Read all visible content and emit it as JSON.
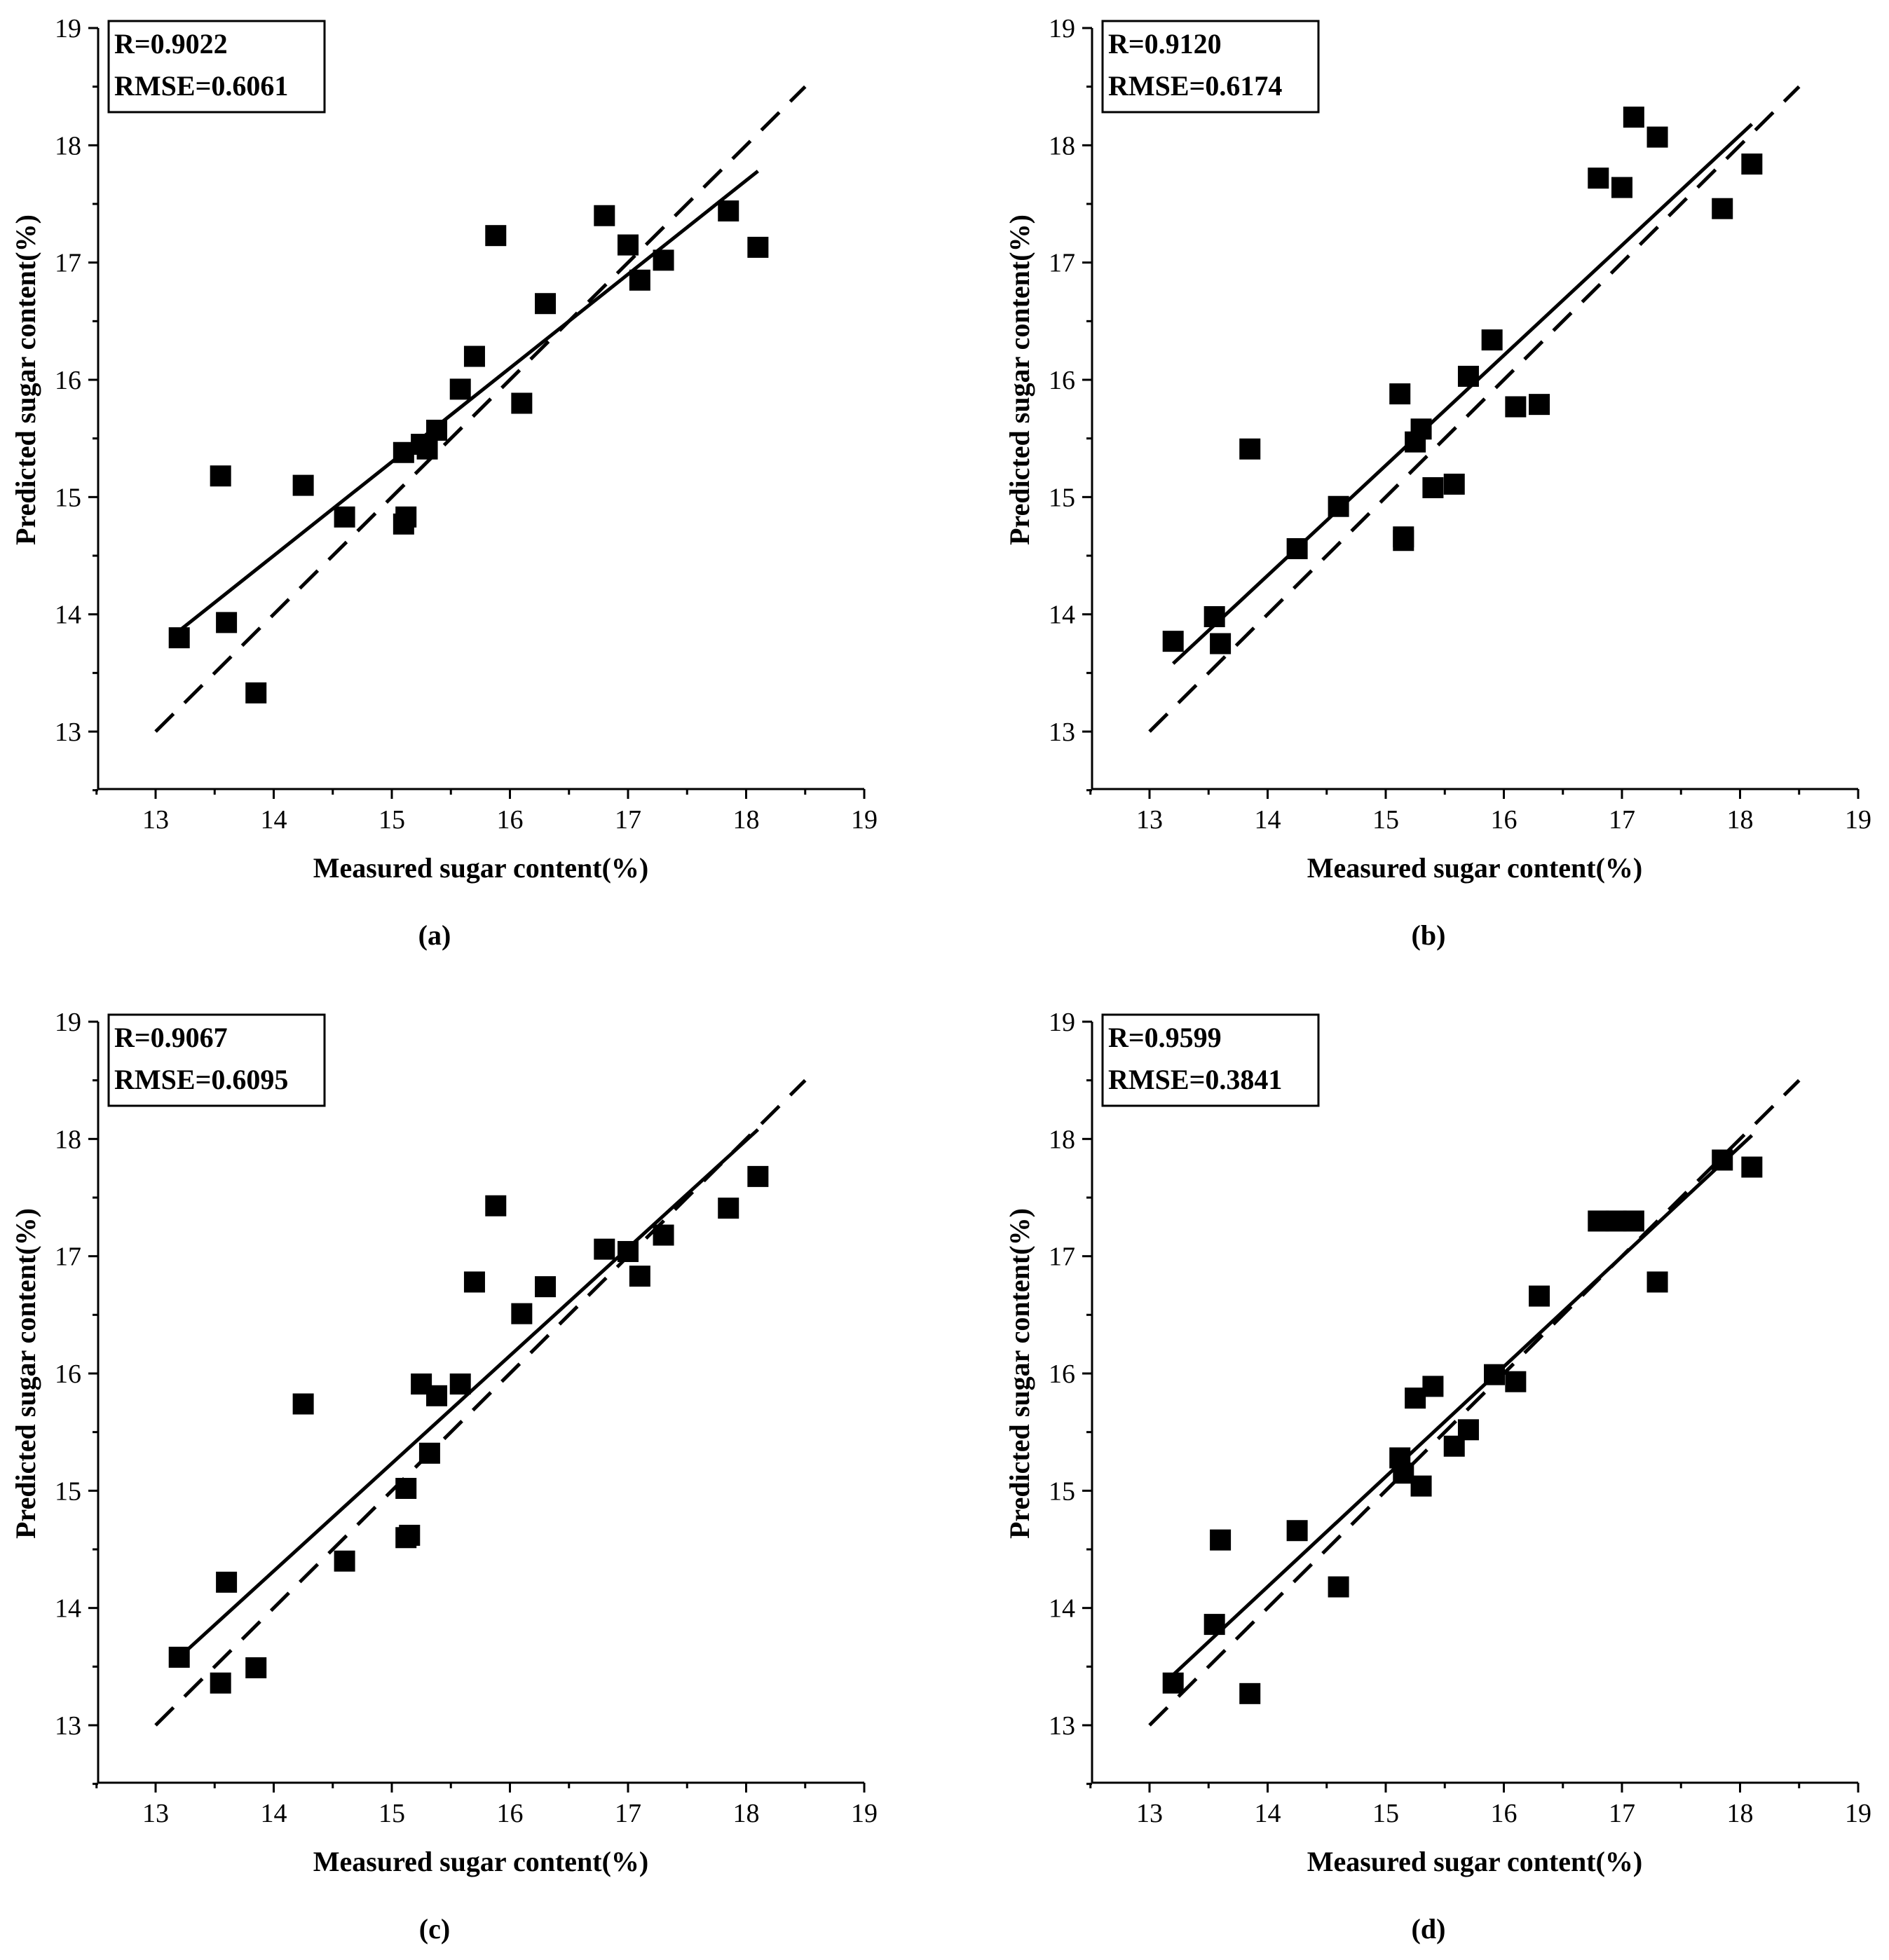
{
  "chart_data": [
    {
      "type": "scatter",
      "panel_label": "(a)",
      "xlabel": "Measured sugar content(%)",
      "ylabel": "Predicted sugar content(%)",
      "xlim": [
        12.5,
        19
      ],
      "ylim": [
        12.5,
        19
      ],
      "xticks": [
        "13",
        "14",
        "15",
        "16",
        "17",
        "18",
        "19"
      ],
      "yticks": [
        "13",
        "14",
        "15",
        "16",
        "17",
        "18",
        "19"
      ],
      "stats": {
        "r": "R=0.9022",
        "rmse": "RMSE=0.6061"
      },
      "fit_line": {
        "x": [
          13.2,
          18.1
        ],
        "y": [
          13.86,
          17.78
        ]
      },
      "reference_line": {
        "x": [
          13.0,
          18.5
        ],
        "y": [
          13.0,
          18.5
        ],
        "style": "dashed"
      },
      "x": [
        13.2,
        13.55,
        13.6,
        13.85,
        14.25,
        14.6,
        15.1,
        15.12,
        15.1,
        15.25,
        15.3,
        15.38,
        15.58,
        15.7,
        15.88,
        16.1,
        16.3,
        16.8,
        17.0,
        17.1,
        17.3,
        17.85,
        18.1
      ],
      "y": [
        13.8,
        15.18,
        13.93,
        13.33,
        15.1,
        14.83,
        14.77,
        14.83,
        15.38,
        15.45,
        15.41,
        15.57,
        15.92,
        16.2,
        17.23,
        15.8,
        16.65,
        17.4,
        17.15,
        16.85,
        17.02,
        17.44,
        17.13
      ]
    },
    {
      "type": "scatter",
      "panel_label": "(b)",
      "xlabel": "Measured sugar content(%)",
      "ylabel": "Predicted sugar content(%)",
      "xlim": [
        12.5,
        19
      ],
      "ylim": [
        12.5,
        19
      ],
      "xticks": [
        "13",
        "14",
        "15",
        "16",
        "17",
        "18",
        "19"
      ],
      "yticks": [
        "13",
        "14",
        "15",
        "16",
        "17",
        "18",
        "19"
      ],
      "stats": {
        "r": "R=0.9120",
        "rmse": "RMSE=0.6174"
      },
      "fit_line": {
        "x": [
          13.2,
          18.1
        ],
        "y": [
          13.58,
          18.18
        ]
      },
      "reference_line": {
        "x": [
          13.0,
          18.5
        ],
        "y": [
          13.0,
          18.5
        ],
        "style": "dashed"
      },
      "x": [
        13.2,
        13.55,
        13.6,
        13.85,
        14.25,
        14.6,
        15.12,
        15.15,
        15.15,
        15.25,
        15.3,
        15.4,
        15.58,
        15.7,
        15.9,
        16.1,
        16.3,
        16.8,
        17.0,
        17.1,
        17.3,
        17.85,
        18.1
      ],
      "y": [
        13.77,
        13.98,
        13.75,
        15.41,
        14.56,
        14.92,
        15.88,
        14.66,
        14.63,
        15.47,
        15.58,
        15.08,
        15.11,
        16.03,
        16.34,
        15.77,
        15.79,
        17.72,
        17.64,
        18.24,
        18.07,
        17.46,
        17.84
      ]
    },
    {
      "type": "scatter",
      "panel_label": "(c)",
      "xlabel": "Measured sugar content(%)",
      "ylabel": "Predicted sugar content(%)",
      "xlim": [
        12.5,
        19
      ],
      "ylim": [
        12.5,
        19
      ],
      "xticks": [
        "13",
        "14",
        "15",
        "16",
        "17",
        "18",
        "19"
      ],
      "yticks": [
        "13",
        "14",
        "15",
        "16",
        "17",
        "18",
        "19"
      ],
      "stats": {
        "r": "R=0.9067",
        "rmse": "RMSE=0.6095"
      },
      "fit_line": {
        "x": [
          13.2,
          18.1
        ],
        "y": [
          13.58,
          18.08
        ]
      },
      "reference_line": {
        "x": [
          13.0,
          18.5
        ],
        "y": [
          13.0,
          18.5
        ],
        "style": "dashed"
      },
      "x": [
        13.2,
        13.55,
        13.6,
        13.85,
        14.25,
        14.6,
        15.12,
        15.12,
        15.15,
        15.25,
        15.32,
        15.38,
        15.58,
        15.7,
        15.88,
        16.1,
        16.3,
        16.8,
        17.0,
        17.1,
        17.3,
        17.85,
        18.1
      ],
      "y": [
        13.58,
        13.36,
        14.22,
        13.49,
        15.74,
        14.4,
        15.02,
        14.6,
        14.62,
        15.91,
        15.32,
        15.81,
        15.91,
        16.78,
        17.43,
        16.51,
        16.74,
        17.06,
        17.04,
        16.83,
        17.18,
        17.41,
        17.68
      ]
    },
    {
      "type": "scatter",
      "panel_label": "(d)",
      "xlabel": "Measured sugar content(%)",
      "ylabel": "Predicted sugar content(%)",
      "xlim": [
        12.5,
        19
      ],
      "ylim": [
        12.5,
        19
      ],
      "xticks": [
        "13",
        "14",
        "15",
        "16",
        "17",
        "18",
        "19"
      ],
      "yticks": [
        "13",
        "14",
        "15",
        "16",
        "17",
        "18",
        "19"
      ],
      "stats": {
        "r": "R=0.9599",
        "rmse": "RMSE=0.3841"
      },
      "fit_line": {
        "x": [
          13.2,
          18.1
        ],
        "y": [
          13.43,
          18.03
        ]
      },
      "reference_line": {
        "x": [
          13.0,
          18.5
        ],
        "y": [
          13.0,
          18.5
        ],
        "style": "dashed"
      },
      "x": [
        13.2,
        13.55,
        13.6,
        13.85,
        14.25,
        14.6,
        15.12,
        15.15,
        15.25,
        15.3,
        15.4,
        15.58,
        15.7,
        15.92,
        16.1,
        16.3,
        16.8,
        16.95,
        17.1,
        17.3,
        17.85,
        18.1
      ],
      "y": [
        13.36,
        13.86,
        14.58,
        13.27,
        14.66,
        14.18,
        15.28,
        15.15,
        15.79,
        15.04,
        15.89,
        15.38,
        15.52,
        15.99,
        15.93,
        16.66,
        17.3,
        17.3,
        17.3,
        16.78,
        17.82,
        17.76
      ]
    }
  ]
}
